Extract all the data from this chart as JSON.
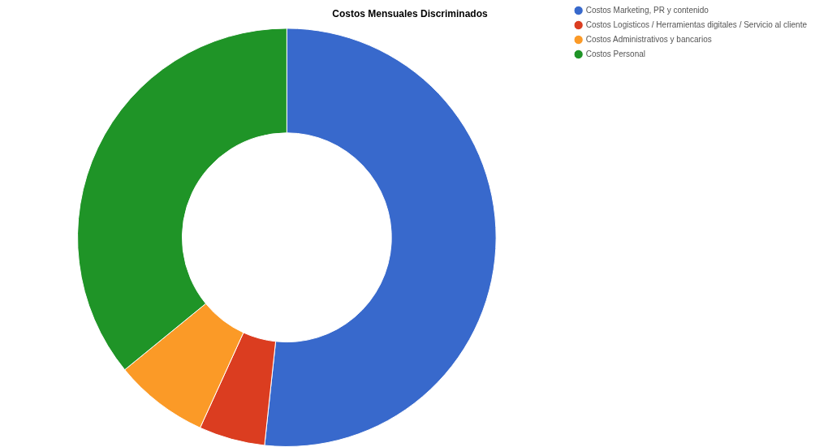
{
  "chart_data": {
    "type": "donut",
    "title": "Costos Mensuales Discriminados",
    "categories": [
      "Costos Marketing, PR y contenido",
      "Costos Logisticos / Herramientas digitales / Servicio al cliente",
      "Costos Administrativos y bancarios",
      "Costos Personal"
    ],
    "values": [
      51.7,
      5.1,
      7.3,
      35.9
    ],
    "colors": [
      "#3869cc",
      "#db3d20",
      "#fb9a27",
      "#1f9427"
    ],
    "legend": "top right"
  }
}
